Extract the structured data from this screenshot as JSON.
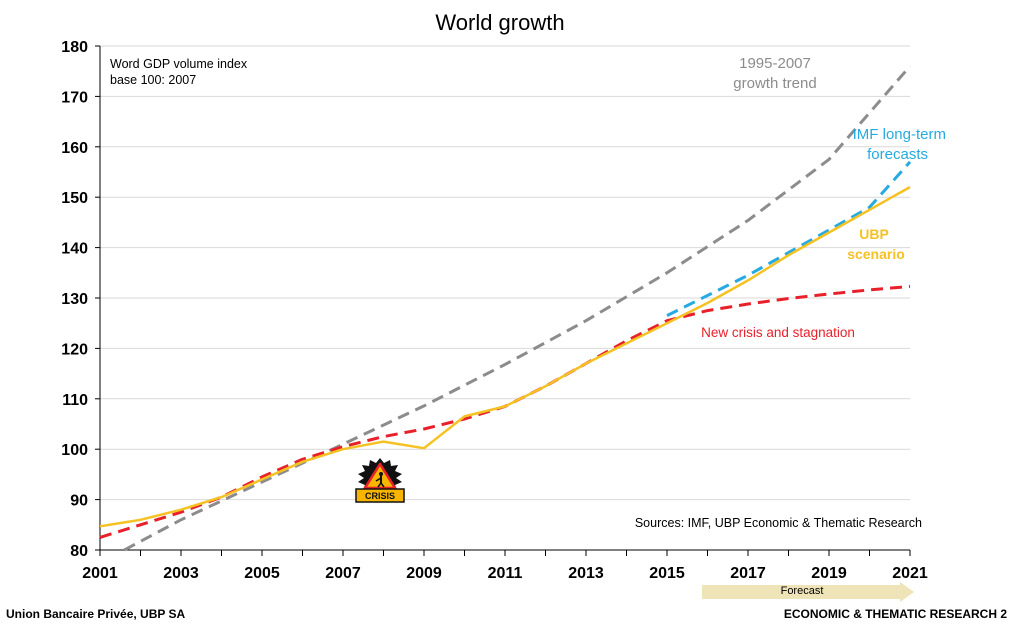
{
  "footer": {
    "left": "Union Bancaire Privée, UBP SA",
    "right": "ECONOMIC & THEMATIC RESEARCH 2"
  },
  "forecast_label": "Forecast",
  "colors": {
    "trend": "#8c8c8c",
    "imf": "#27aae1",
    "ubp": "#f5c224",
    "crisis": "#e8202a",
    "grid": "#d9d9d9",
    "forecast_arrow": "#efe3b8"
  },
  "chart_data": {
    "type": "line",
    "title": "World growth",
    "note_line1": "Word GDP volume index",
    "note_line2": "base 100: 2007",
    "source": "Sources: IMF, UBP Economic & Thematic Research",
    "xlim": [
      2001,
      2021
    ],
    "ylim": [
      80,
      180
    ],
    "y_ticks": [
      "80",
      "90",
      "100",
      "110",
      "120",
      "130",
      "140",
      "150",
      "160",
      "170",
      "180"
    ],
    "x_ticks": [
      "2001",
      "2003",
      "2005",
      "2007",
      "2009",
      "2011",
      "2013",
      "2015",
      "2017",
      "2019",
      "2021"
    ],
    "crisis_badge": "CRISIS",
    "series": [
      {
        "name": "1995-2007 growth trend",
        "label_line1": "1995-2007",
        "label_line2": "growth trend",
        "style": "dashed",
        "color": "#8c8c8c",
        "x": [
          2001.6,
          2003,
          2005,
          2007,
          2009,
          2011,
          2013,
          2015,
          2017,
          2019,
          2021
        ],
        "y": [
          80,
          86,
          93.5,
          101,
          108.6,
          116.8,
          125.5,
          135,
          145.4,
          157.5,
          176
        ]
      },
      {
        "name": "IMF long-term forecasts",
        "label_line1": "IMF long-term",
        "label_line2": "forecasts",
        "style": "dashed",
        "color": "#27aae1",
        "x": [
          2015,
          2016,
          2017,
          2018,
          2019,
          2020,
          2021
        ],
        "y": [
          126.5,
          130.5,
          134.5,
          139,
          143.5,
          148,
          157
        ]
      },
      {
        "name": "UBP scenario",
        "label_line1": "UBP",
        "label_line2": "scenario",
        "style": "solid",
        "color": "#f5c224",
        "x": [
          2001,
          2002,
          2003,
          2004,
          2005,
          2006,
          2007,
          2008,
          2009,
          2010,
          2011,
          2012,
          2013,
          2014,
          2015,
          2016,
          2017,
          2018,
          2019,
          2020,
          2021
        ],
        "y": [
          84.7,
          86,
          88,
          90.5,
          94,
          97.5,
          100,
          101.5,
          100.2,
          106.5,
          108.5,
          112.5,
          117,
          121,
          125,
          129,
          133.5,
          138.5,
          143,
          147.5,
          152
        ]
      },
      {
        "name": "New crisis and stagnation",
        "label_line1": "New crisis and stagnation",
        "label_line2": "",
        "style": "dashed",
        "color": "#e8202a",
        "x": [
          2001,
          2002,
          2003,
          2004,
          2005,
          2006,
          2007,
          2008,
          2009,
          2010,
          2011,
          2012,
          2013,
          2014,
          2015,
          2016,
          2017,
          2018,
          2019,
          2020,
          2021
        ],
        "y": [
          82.5,
          85,
          87.5,
          90.5,
          94.5,
          98,
          100.5,
          102.5,
          104,
          106,
          108.5,
          112.5,
          117,
          121.5,
          125.5,
          127.5,
          128.8,
          129.9,
          130.8,
          131.6,
          132.3
        ]
      }
    ]
  }
}
